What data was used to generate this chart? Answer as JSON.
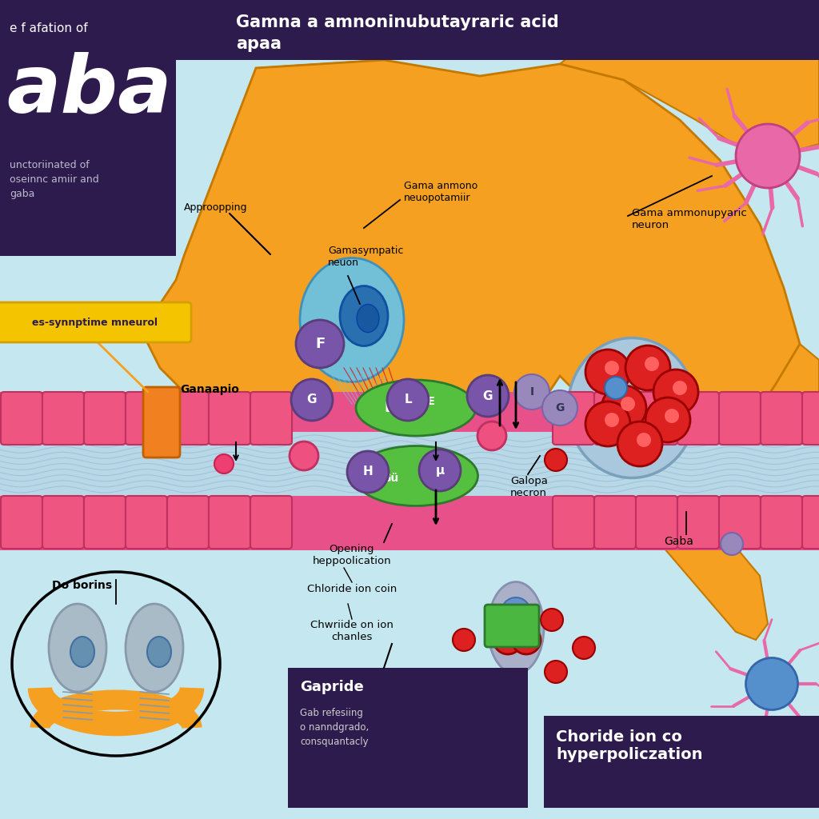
{
  "bg_color": "#c5e8f0",
  "banner_color": "#2d1b4e",
  "orange": "#f5a020",
  "orange_dark": "#c47a00",
  "pink": "#e8508a",
  "pink_dark": "#c03060",
  "blue_mem": "#b8d8e8",
  "blue_dark": "#7aaac8",
  "purple": "#7855a8",
  "purple_dark": "#5a3d7a",
  "green": "#4ab840",
  "green_dark": "#2d7a2d",
  "red_vesicle": "#dd2020",
  "yellow_box": "#f5c400",
  "title_line1": "Gamna a amnoninubutayraric acid",
  "title_line2": "apaa",
  "left_box_line1": "e f afation of",
  "left_box_big": "aba",
  "left_box_small": "unctoriinated of\noseinnc amiir and\ngaba",
  "label_approching": "Approopping",
  "label_gamma_neuro": "Gama anmono\nneuopotamiir",
  "label_gamasympatic": "Gamasympatic\nneuon",
  "label_gama_neuron": "Gama ammonupyaric\nneuron",
  "label_presyn": "es-synnptime mneurol",
  "label_ganaapio": "Ganaapio",
  "label_do_borins": "Do borins",
  "label_opening": "Opening\nheppoolication",
  "label_chloride_coin": "Chloride ion coin",
  "label_chloride_chan": "Chwriide on ion\nchanles",
  "label_galopa": "Galopa\nnecron",
  "label_gaba": "Gaba",
  "label_gapride": "Gapride",
  "label_gab_text": "Gab refesiing\no nanndgrado,\nconsquantacly",
  "label_bottom_right": "Choride ion co\nhyperpoliczation"
}
